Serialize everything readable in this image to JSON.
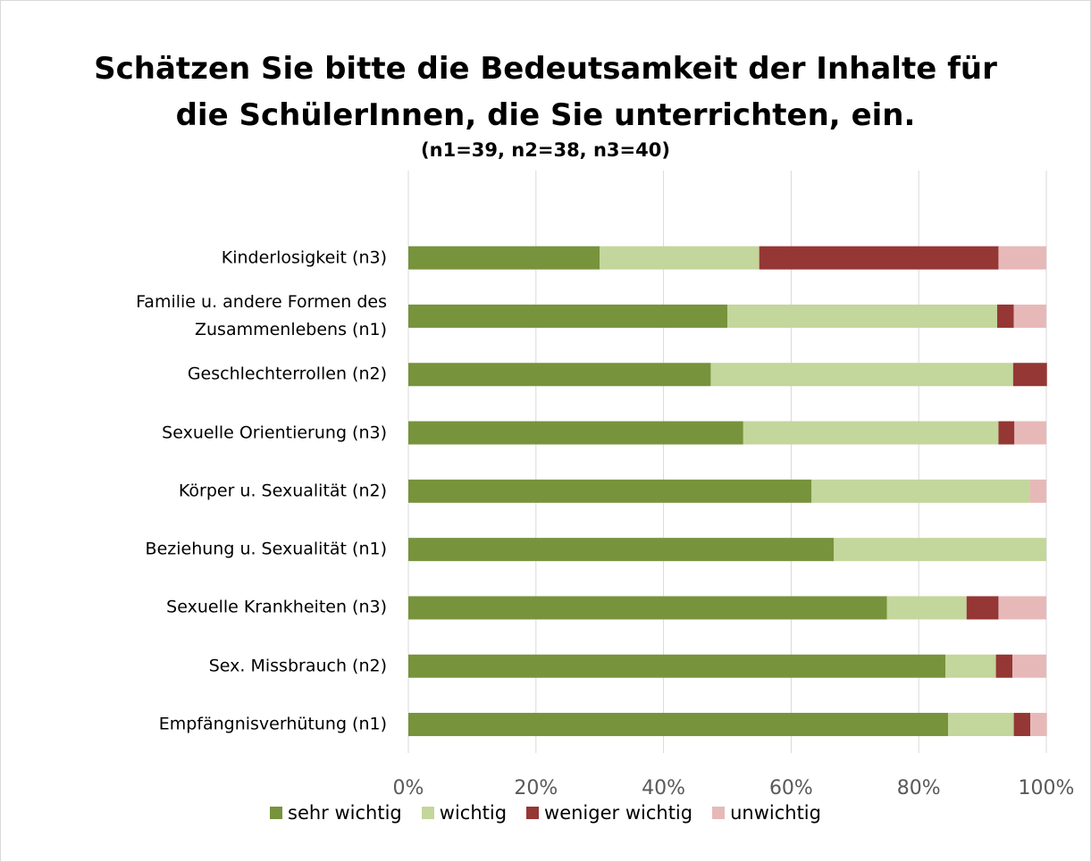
{
  "chart_data": {
    "type": "stacked_bar_horizontal",
    "title": "Schätzen Sie bitte die Bedeutsamkeit der Inhalte für\ndie SchülerInnen, die Sie unterrichten, ein.",
    "subtitle": "(n1=39, n2=38, n3=40)",
    "categories": [
      "Kinderlosigkeit (n3)",
      "Familie u. andere Formen des\nZusammenlebens (n1)",
      "Geschlechterrollen (n2)",
      "Sexuelle Orientierung (n3)",
      "Körper u. Sexualität (n2)",
      "Beziehung u. Sexualität (n1)",
      "Sexuelle Krankheiten (n3)",
      "Sex. Missbrauch (n2)",
      "Empfängnisverhütung (n1)"
    ],
    "series": [
      {
        "name": "sehr wichtig",
        "color": "#77933c",
        "values": [
          30,
          50,
          47.4,
          52.5,
          63.2,
          66.7,
          75,
          84.2,
          84.6
        ]
      },
      {
        "name": "wichtig",
        "color": "#c3d69b",
        "values": [
          25,
          42.3,
          47.4,
          40,
          34.2,
          33.3,
          12.5,
          7.9,
          10.3
        ]
      },
      {
        "name": "weniger wichtig",
        "color": "#953735",
        "values": [
          37.5,
          2.6,
          5.3,
          2.5,
          0,
          0,
          5,
          2.6,
          2.6
        ]
      },
      {
        "name": "unwichtig",
        "color": "#e6b9b8",
        "values": [
          7.5,
          5.1,
          0,
          5,
          2.6,
          0,
          7.5,
          5.3,
          2.6
        ]
      }
    ],
    "xlim": [
      0,
      100
    ],
    "xticks": [
      {
        "value": 0,
        "label": "0%"
      },
      {
        "value": 20,
        "label": "20%"
      },
      {
        "value": 40,
        "label": "40%"
      },
      {
        "value": 60,
        "label": "60%"
      },
      {
        "value": 80,
        "label": "80%"
      },
      {
        "value": 100,
        "label": "100%"
      }
    ],
    "grid": true,
    "legend": "bottom"
  }
}
